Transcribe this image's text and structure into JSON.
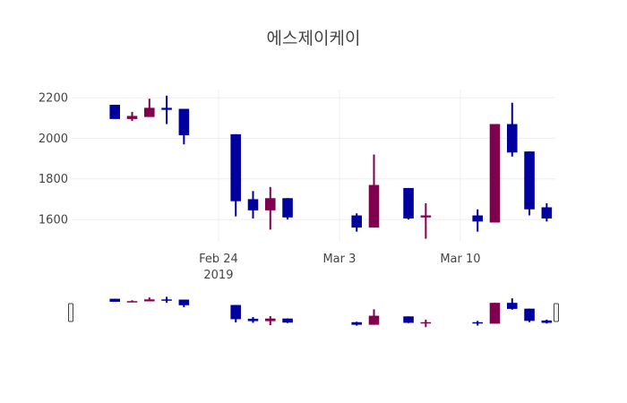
{
  "chart_data": {
    "type": "candlestick",
    "title": "에스제이케이",
    "x_tick_labels": [
      {
        "date": "2019-02-24",
        "line1": "Feb 24",
        "line2": "2019"
      },
      {
        "date": "2019-03-03",
        "line1": "Mar 3",
        "line2": ""
      },
      {
        "date": "2019-03-10",
        "line1": "Mar 10",
        "line2": ""
      }
    ],
    "y_ticks": [
      1600,
      1800,
      2000,
      2200
    ],
    "x_range": [
      "2019-02-15T12:00",
      "2019-03-15T12:00"
    ],
    "y_range": [
      1490,
      2240
    ],
    "grid": true,
    "rangeslider": true,
    "colors": {
      "increasing": "#7f004c",
      "decreasing": "#00009f",
      "grid": "#eeeeee"
    },
    "candles": [
      {
        "date": "2019-02-18",
        "open": 2165,
        "high": 2165,
        "low": 2095,
        "close": 2095
      },
      {
        "date": "2019-02-19",
        "open": 2095,
        "high": 2130,
        "low": 2085,
        "close": 2110
      },
      {
        "date": "2019-02-20",
        "open": 2105,
        "high": 2195,
        "low": 2105,
        "close": 2150
      },
      {
        "date": "2019-02-21",
        "open": 2150,
        "high": 2210,
        "low": 2070,
        "close": 2140
      },
      {
        "date": "2019-02-22",
        "open": 2145,
        "high": 2145,
        "low": 1970,
        "close": 2015
      },
      {
        "date": "2019-02-25",
        "open": 2020,
        "high": 2020,
        "low": 1615,
        "close": 1690
      },
      {
        "date": "2019-02-26",
        "open": 1700,
        "high": 1740,
        "low": 1605,
        "close": 1645
      },
      {
        "date": "2019-02-27",
        "open": 1645,
        "high": 1760,
        "low": 1550,
        "close": 1705
      },
      {
        "date": "2019-02-28",
        "open": 1705,
        "high": 1705,
        "low": 1600,
        "close": 1610
      },
      {
        "date": "2019-03-04",
        "open": 1620,
        "high": 1630,
        "low": 1540,
        "close": 1560
      },
      {
        "date": "2019-03-05",
        "open": 1560,
        "high": 1920,
        "low": 1560,
        "close": 1770
      },
      {
        "date": "2019-03-07",
        "open": 1755,
        "high": 1755,
        "low": 1600,
        "close": 1605
      },
      {
        "date": "2019-03-08",
        "open": 1610,
        "high": 1680,
        "low": 1505,
        "close": 1620
      },
      {
        "date": "2019-03-11",
        "open": 1620,
        "high": 1650,
        "low": 1540,
        "close": 1590
      },
      {
        "date": "2019-03-12",
        "open": 1585,
        "high": 2070,
        "low": 1585,
        "close": 2070
      },
      {
        "date": "2019-03-13",
        "open": 2070,
        "high": 2175,
        "low": 1910,
        "close": 1930
      },
      {
        "date": "2019-03-14",
        "open": 1935,
        "high": 1935,
        "low": 1620,
        "close": 1650
      },
      {
        "date": "2019-03-15",
        "open": 1660,
        "high": 1680,
        "low": 1590,
        "close": 1605
      }
    ]
  }
}
